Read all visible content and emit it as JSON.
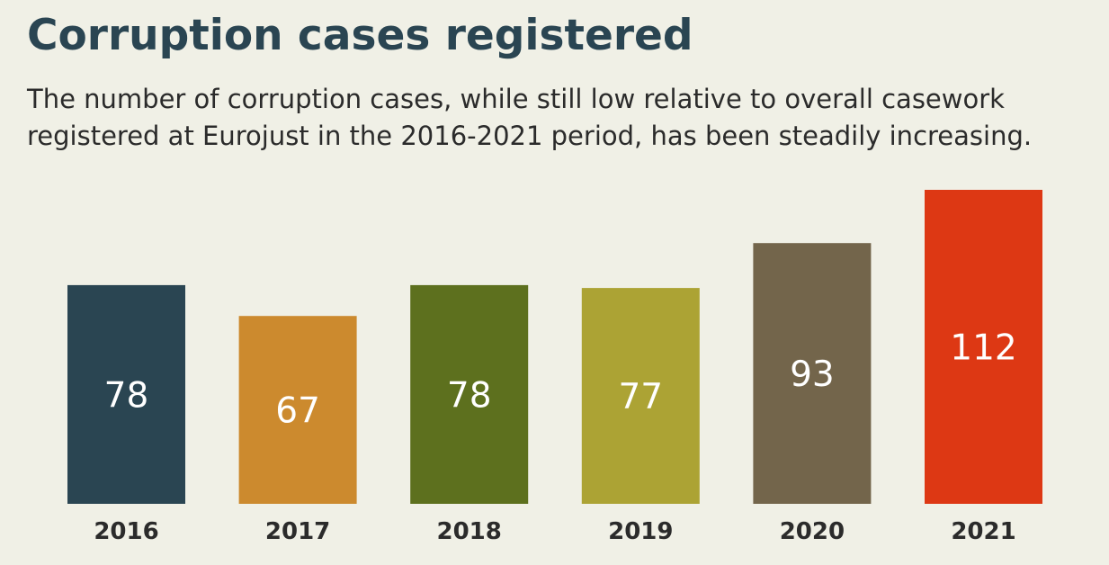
{
  "header": {
    "title": "Corruption cases registered",
    "subtitle": "The number of corruption cases, while still low relative to overall casework registered at Eurojust in the 2016-2021 period, has been steadily increasing."
  },
  "chart_data": {
    "type": "bar",
    "title": "Corruption cases registered",
    "categories": [
      "2016",
      "2017",
      "2018",
      "2019",
      "2020",
      "2021"
    ],
    "values": [
      78,
      67,
      78,
      77,
      93,
      112
    ],
    "data_labels": [
      "78",
      "67",
      "78",
      "77",
      "93",
      "112"
    ],
    "colors": [
      "#2a4552",
      "#cc8a2e",
      "#5d701e",
      "#aca334",
      "#73654b",
      "#dd3814"
    ],
    "xlabel": "",
    "ylabel": "",
    "ylim": [
      0,
      112
    ],
    "grid": false,
    "legend": "none"
  }
}
